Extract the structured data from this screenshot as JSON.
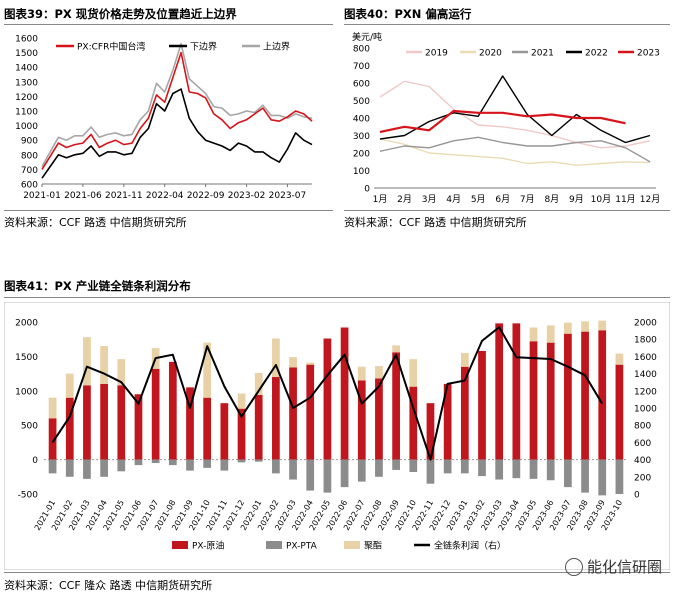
{
  "fig39": {
    "title": "图表39：PX 现货价格走势及位置趋近上边界",
    "source": "资料来源：CCF 路透 中信期货研究所"
  },
  "fig40": {
    "title": "图表40：PXN 偏高运行",
    "source": "资料来源：CCF 路透 中信期货研究所"
  },
  "fig41": {
    "title": "图表41：PX 产业链全链条利润分布",
    "source": "资料来源：CCF 隆众 路透 中信期货研究所"
  },
  "watermark": "能化信研圈",
  "chart_data": [
    {
      "type": "line",
      "ylim": [
        600,
        1600
      ],
      "yticks": [
        600,
        700,
        800,
        900,
        1000,
        1100,
        1200,
        1300,
        1400,
        1500,
        1600
      ],
      "xticks": [
        "2021-01",
        "2021-06",
        "2021-11",
        "2022-04",
        "2022-09",
        "2023-02",
        "2023-07"
      ],
      "x": [
        "2021-01",
        "2021-02",
        "2021-03",
        "2021-04",
        "2021-05",
        "2021-06",
        "2021-07",
        "2021-08",
        "2021-09",
        "2021-10",
        "2021-11",
        "2021-12",
        "2022-01",
        "2022-02",
        "2022-03",
        "2022-04",
        "2022-05",
        "2022-06",
        "2022-07",
        "2022-08",
        "2022-09",
        "2022-10",
        "2022-11",
        "2022-12",
        "2023-01",
        "2023-02",
        "2023-03",
        "2023-04",
        "2023-05",
        "2023-06",
        "2023-07",
        "2023-08",
        "2023-09",
        "2023-10"
      ],
      "series": [
        {
          "name": "PX:CFR中国台湾",
          "color": "#d7141a",
          "values": [
            700,
            790,
            880,
            850,
            870,
            880,
            940,
            850,
            880,
            900,
            870,
            880,
            980,
            1050,
            1210,
            1160,
            1330,
            1500,
            1230,
            1220,
            1190,
            1080,
            1040,
            980,
            1020,
            1040,
            1080,
            1120,
            1040,
            1030,
            1060,
            1100,
            1080,
            1030
          ]
        },
        {
          "name": "下边界",
          "color": "#000000",
          "values": [
            640,
            720,
            800,
            780,
            800,
            810,
            860,
            790,
            820,
            820,
            800,
            810,
            920,
            980,
            1150,
            1100,
            1220,
            1250,
            1050,
            960,
            900,
            880,
            860,
            830,
            880,
            860,
            820,
            820,
            780,
            750,
            840,
            950,
            900,
            870
          ]
        },
        {
          "name": "上边界",
          "color": "#a6a6a6",
          "values": [
            720,
            820,
            920,
            900,
            930,
            930,
            990,
            920,
            940,
            950,
            930,
            940,
            1040,
            1100,
            1290,
            1230,
            1380,
            1560,
            1320,
            1270,
            1220,
            1130,
            1120,
            1070,
            1080,
            1100,
            1090,
            1140,
            1070,
            1070,
            1050,
            1080,
            1060,
            1050
          ]
        }
      ]
    },
    {
      "type": "line",
      "ylabel": "美元/吨",
      "ylim": [
        0,
        800
      ],
      "yticks": [
        0,
        100,
        200,
        300,
        400,
        500,
        600,
        700,
        800
      ],
      "categories": [
        "1月",
        "2月",
        "3月",
        "4月",
        "5月",
        "6月",
        "7月",
        "8月",
        "9月",
        "10月",
        "11月",
        "12月"
      ],
      "series": [
        {
          "name": "2019",
          "color": "#f2c8c8",
          "values": [
            520,
            610,
            580,
            450,
            360,
            350,
            330,
            300,
            260,
            230,
            240,
            270
          ]
        },
        {
          "name": "2020",
          "color": "#ecdcb5",
          "values": [
            280,
            250,
            200,
            190,
            180,
            170,
            140,
            150,
            130,
            140,
            150,
            145
          ]
        },
        {
          "name": "2021",
          "color": "#969696",
          "values": [
            210,
            240,
            230,
            270,
            290,
            260,
            240,
            240,
            260,
            270,
            230,
            150
          ]
        },
        {
          "name": "2022",
          "color": "#000000",
          "values": [
            280,
            300,
            380,
            430,
            410,
            640,
            420,
            300,
            420,
            330,
            260,
            300
          ]
        },
        {
          "name": "2023",
          "color": "#d7141a",
          "values": [
            320,
            350,
            330,
            440,
            430,
            430,
            410,
            420,
            400,
            400,
            370,
            null
          ]
        }
      ]
    },
    {
      "type": "bar",
      "ylim": [
        -500,
        2000
      ],
      "ylim_right": [
        0,
        2000
      ],
      "categories": [
        "2021-01",
        "2021-02",
        "2021-03",
        "2021-04",
        "2021-05",
        "2021-06",
        "2021-07",
        "2021-08",
        "2021-09",
        "2021-10",
        "2021-11",
        "2021-12",
        "2022-01",
        "2022-02",
        "2022-03",
        "2022-04",
        "2022-05",
        "2022-06",
        "2022-07",
        "2022-08",
        "2022-09",
        "2022-10",
        "2022-11",
        "2022-12",
        "2023-01",
        "2023-02",
        "2023-03",
        "2023-04",
        "2023-05",
        "2023-06",
        "2023-07",
        "2023-08",
        "2023-09",
        "2023-10"
      ],
      "series": [
        {
          "name": "PX-原油",
          "color": "#c0161d",
          "values": [
            600,
            900,
            1080,
            1100,
            1080,
            950,
            1320,
            1420,
            1050,
            900,
            820,
            740,
            940,
            1200,
            1340,
            1380,
            1760,
            1920,
            1150,
            1180,
            1560,
            1060,
            820,
            1100,
            1350,
            1580,
            1980,
            1980,
            1720,
            1700,
            1830,
            1860,
            1880,
            1380
          ]
        },
        {
          "name": "PX-PTA",
          "color": "#8c8c8c",
          "values": [
            -200,
            -250,
            -280,
            -250,
            -170,
            -80,
            -50,
            -80,
            -160,
            -120,
            -160,
            -40,
            -30,
            -200,
            -290,
            -450,
            -480,
            -400,
            -320,
            -250,
            -150,
            -180,
            -350,
            -200,
            -200,
            -240,
            -290,
            -270,
            -280,
            -300,
            -400,
            -480,
            -520,
            -500
          ]
        },
        {
          "name": "聚酯",
          "color": "#e8d1a6",
          "values": [
            300,
            350,
            700,
            550,
            380,
            0,
            300,
            0,
            0,
            800,
            0,
            220,
            320,
            560,
            150,
            30,
            0,
            0,
            200,
            180,
            100,
            400,
            0,
            0,
            200,
            0,
            0,
            0,
            200,
            250,
            160,
            150,
            140,
            160
          ]
        },
        {
          "name": "全链条利润（右）",
          "color": "#000000",
          "values": [
            600,
            900,
            1480,
            1400,
            1300,
            1050,
            1580,
            1620,
            1000,
            1720,
            1250,
            900,
            1200,
            1500,
            1000,
            1120,
            1380,
            1620,
            1050,
            1250,
            1620,
            1000,
            400,
            1280,
            1320,
            1780,
            1940,
            1590,
            1580,
            1570,
            1480,
            1380,
            1050,
            null
          ]
        }
      ]
    }
  ]
}
